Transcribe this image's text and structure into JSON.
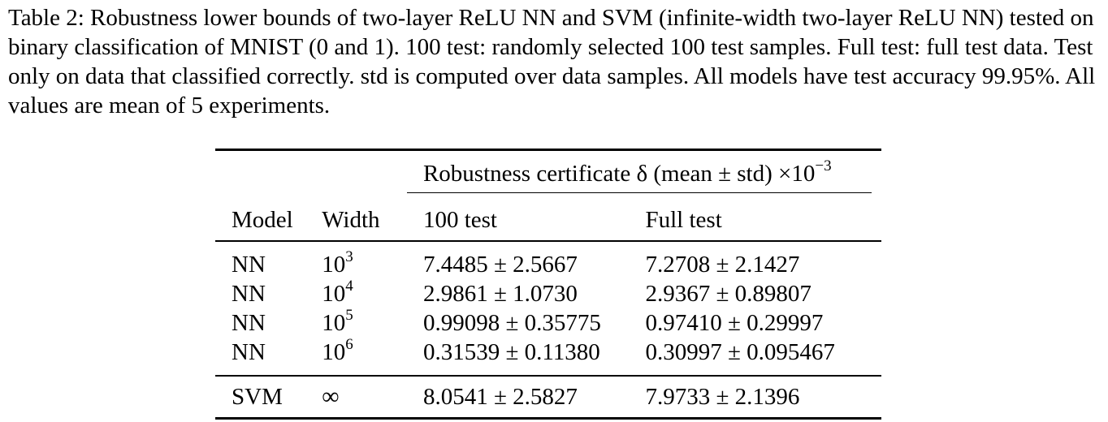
{
  "caption": {
    "text": "Table 2: Robustness lower bounds of two-layer ReLU NN and SVM (infinite-width two-layer ReLU NN) tested on binary classification of MNIST (0 and 1). 100 test: randomly selected 100 test samples. Full test: full test data. Test only on data that classified correctly. std is computed over data samples. All models have test accuracy 99.95%. All values are mean of 5 experiments."
  },
  "table": {
    "group_header": "Robustness certificate δ (mean ± std) ×10",
    "group_header_exp": "−3",
    "columns": {
      "model": "Model",
      "width": "Width",
      "test100": "100 test",
      "full": "Full test"
    },
    "rows": [
      {
        "model": "NN",
        "width_base": "10",
        "width_exp": "3",
        "test100": "7.4485 ± 2.5667",
        "full": "7.2708 ± 2.1427"
      },
      {
        "model": "NN",
        "width_base": "10",
        "width_exp": "4",
        "test100": "2.9861 ± 1.0730",
        "full": "2.9367 ± 0.89807"
      },
      {
        "model": "NN",
        "width_base": "10",
        "width_exp": "5",
        "test100": "0.99098 ± 0.35775",
        "full": "0.97410 ± 0.29997"
      },
      {
        "model": "NN",
        "width_base": "10",
        "width_exp": "6",
        "test100": "0.31539 ± 0.11380",
        "full": "0.30997 ± 0.095467"
      }
    ],
    "svm_row": {
      "model": "SVM",
      "width": "∞",
      "test100": "8.0541 ± 2.5827",
      "full": "7.9733 ± 2.1396"
    }
  }
}
